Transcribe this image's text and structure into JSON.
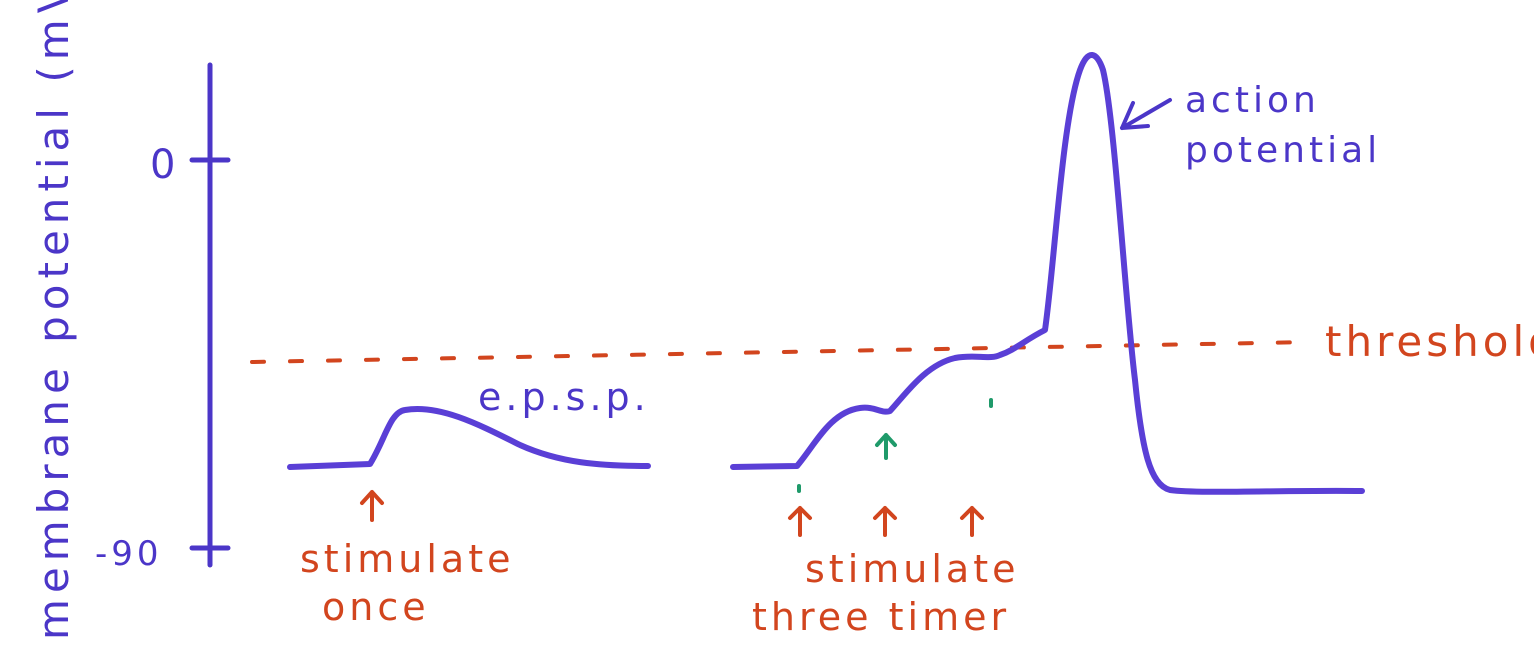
{
  "axis": {
    "ylabel": "membrane potential (mV)",
    "tick_zero": "0",
    "tick_minus90": "-90"
  },
  "labels": {
    "epsp": "e.p.s.p.",
    "action_potential_line1": "action",
    "action_potential_line2": "potential",
    "threshold": "threshold",
    "stimulate_once_line1": "stimulate",
    "stimulate_once_line2": "once",
    "stimulate_three_line1": "stimulate",
    "stimulate_three_line2": "three timer"
  },
  "colors": {
    "trace": "#5a3fd6",
    "axis": "#4b36c8",
    "annotation_red": "#d2451e",
    "annotation_green": "#1f9a6a"
  }
}
